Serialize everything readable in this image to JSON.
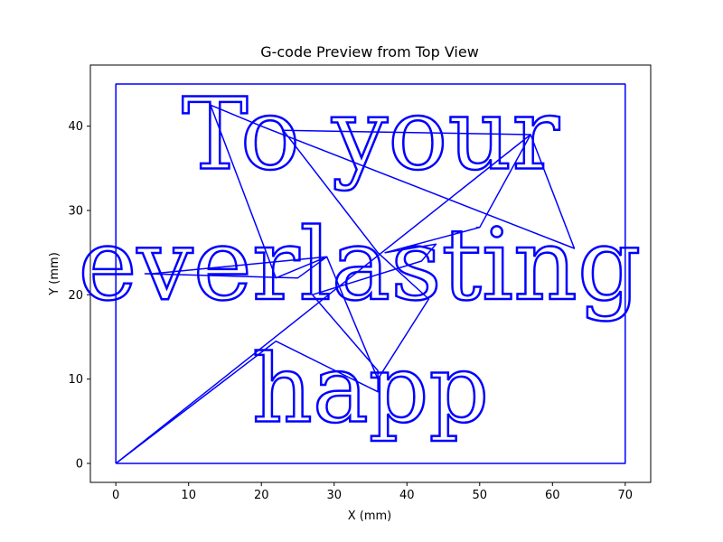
{
  "chart_data": {
    "type": "line",
    "title": "G-code Preview from Top View",
    "xlabel": "X (mm)",
    "ylabel": "Y (mm)",
    "xlim": [
      -3.5,
      73.5
    ],
    "ylim": [
      -2.25,
      47.25
    ],
    "xticks": [
      0,
      10,
      20,
      30,
      40,
      50,
      60,
      70
    ],
    "yticks": [
      0,
      10,
      20,
      30,
      40
    ],
    "grid": false,
    "legend": "none",
    "color": "#0000ff",
    "engraved_text": [
      {
        "text": "To your",
        "x": 35,
        "y": 35
      },
      {
        "text": "everlasting",
        "x": 33.5,
        "y": 19.5
      },
      {
        "text": "happ",
        "x": 35,
        "y": 5
      }
    ],
    "series": [
      {
        "x": [
          0,
          70,
          70,
          0,
          0
        ],
        "y": [
          0,
          0,
          45,
          45,
          0
        ]
      },
      {
        "x": [
          0,
          57,
          50,
          37,
          44,
          42,
          27,
          36,
          36,
          22,
          0
        ],
        "y": [
          0,
          39,
          28,
          25,
          26,
          24,
          20,
          11,
          8.5,
          14.5,
          0
        ]
      },
      {
        "x": [
          13,
          20,
          63,
          57,
          23,
          36,
          43,
          36,
          29,
          5,
          4,
          25,
          29,
          22,
          13
        ],
        "y": [
          42.5,
          40,
          25.5,
          39,
          39.5,
          25,
          19.5,
          10,
          24.5,
          22.5,
          22.5,
          22,
          24.5,
          22,
          42.5
        ]
      },
      {
        "x": [
          50,
          49.5
        ],
        "y": [
          28,
          28
        ]
      }
    ]
  }
}
